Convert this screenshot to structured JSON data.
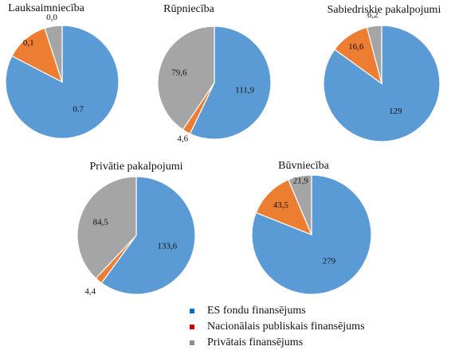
{
  "colors": {
    "es": "#5B9BD5",
    "nacionalais": "#ED7D31",
    "privatais": "#A5A5A5"
  },
  "legend": [
    {
      "label": "ES fondu finansējums",
      "color": "#0070C0"
    },
    {
      "label": "Nacionālais publiskais finansējums",
      "color": "#C00000"
    },
    {
      "label": "Privātais finansējums",
      "color": "#8C8C8C"
    }
  ],
  "chart_data": [
    {
      "type": "pie",
      "title": "Lauksaimniecība",
      "series": [
        "ES fondu finansējums",
        "Nacionālais publiskais finansējums",
        "Privātais finansējums"
      ],
      "labels": [
        "0.7",
        "0,1",
        "0,0"
      ],
      "values": [
        0.7,
        0.1,
        0.0
      ],
      "shares": [
        0.826,
        0.124,
        0.05
      ]
    },
    {
      "type": "pie",
      "title": "Rūpniecība",
      "series": [
        "ES fondu finansējums",
        "Nacionālais publiskais finansējums",
        "Privātais finansējums"
      ],
      "labels": [
        "111,9",
        "4,6",
        "79,6"
      ],
      "values": [
        111.9,
        4.6,
        79.6
      ]
    },
    {
      "type": "pie",
      "title": "Sabiedriskie pakalpojumi",
      "series": [
        "ES fondu finansējums",
        "Nacionālais publiskais finansējums",
        "Privātais finansējums"
      ],
      "labels": [
        "129",
        "16,6",
        "6,2"
      ],
      "values": [
        129,
        16.6,
        6.2
      ]
    },
    {
      "type": "pie",
      "title": "Privātie pakalpojumi",
      "series": [
        "ES fondu finansējums",
        "Nacionālais publiskais finansējums",
        "Privātais finansējums"
      ],
      "labels": [
        "133,6",
        "4,4",
        "84,5"
      ],
      "values": [
        133.6,
        4.4,
        84.5
      ]
    },
    {
      "type": "pie",
      "title": "Būvniecība",
      "series": [
        "ES fondu finansējums",
        "Nacionālais publiskais finansējums",
        "Privātais finansējums"
      ],
      "labels": [
        "279",
        "43,5",
        "21,9"
      ],
      "values": [
        279,
        43.5,
        21.9
      ]
    }
  ]
}
